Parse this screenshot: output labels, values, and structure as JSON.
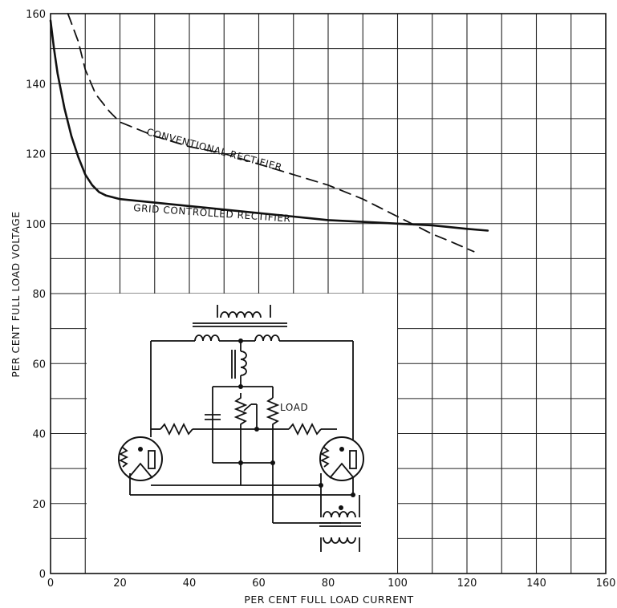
{
  "chart_data": {
    "type": "line",
    "xlabel": "PER CENT FULL LOAD CURRENT",
    "ylabel": "PER CENT FULL LOAD VOLTAGE",
    "xlim": [
      0,
      160
    ],
    "ylim": [
      0,
      160
    ],
    "xticks": [
      0,
      20,
      40,
      60,
      80,
      100,
      120,
      140,
      160
    ],
    "yticks": [
      0,
      20,
      40,
      60,
      80,
      100,
      120,
      140,
      160
    ],
    "grid": true,
    "series": [
      {
        "name": "CONVENTIONAL RECTIFIER",
        "style": "dashed",
        "x": [
          5,
          8,
          10,
          13,
          17,
          20,
          30,
          40,
          50,
          60,
          70,
          80,
          90,
          100,
          110,
          115,
          122
        ],
        "y": [
          160,
          152,
          144,
          137,
          132,
          129,
          125,
          122,
          120,
          117,
          114,
          111,
          107,
          102,
          97,
          95,
          92
        ]
      },
      {
        "name": "GRID CONTROLLED RECTIFIER",
        "style": "solid",
        "x": [
          0,
          1,
          2,
          4,
          6,
          8,
          10,
          12,
          14,
          16,
          18,
          20,
          30,
          40,
          50,
          60,
          70,
          80,
          90,
          100,
          110,
          120,
          126
        ],
        "y": [
          158,
          150,
          143,
          133,
          125,
          119,
          114,
          111,
          109,
          108,
          107.5,
          107,
          106,
          105,
          104,
          103,
          102,
          101,
          100.5,
          100,
          99.5,
          98.5,
          98
        ]
      }
    ],
    "annotations": [
      {
        "text": "CONVENTIONAL RECTIFIER",
        "target": "dashed curve"
      },
      {
        "text": "GRID CONTROLLED RECTIFIER",
        "target": "solid curve"
      },
      {
        "text": "LOAD",
        "target": "inset circuit schematic"
      }
    ]
  }
}
